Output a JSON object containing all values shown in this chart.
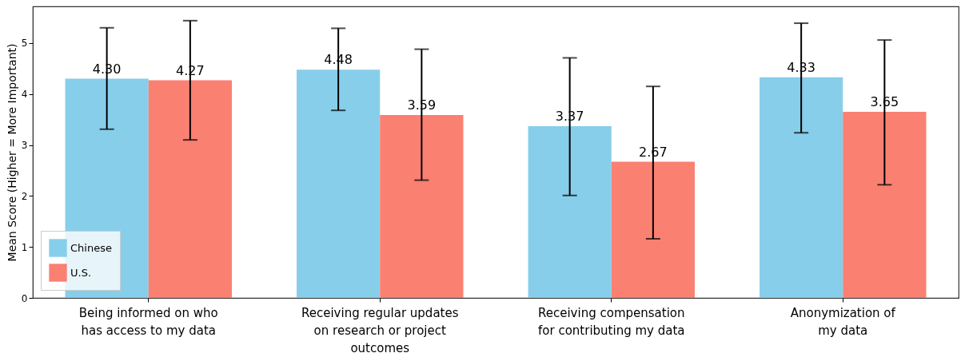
{
  "chart_data": {
    "type": "bar",
    "ylabel": "Mean Score (Higher = More Important)",
    "categories": [
      "Being informed on who\nhas access to my data",
      "Receiving regular updates\non research or project\noutcomes",
      "Receiving   compensation\nfor contributing my data",
      "Anonymization of\nmy data"
    ],
    "series": [
      {
        "name": "Chinese",
        "color": "#87ceeb",
        "values": [
          4.3,
          4.48,
          3.37,
          4.33
        ],
        "value_labels": [
          "4.30",
          "4.48",
          "3.37",
          "4.33"
        ],
        "errors": [
          [
            3.31,
            5.3
          ],
          [
            3.68,
            5.29
          ],
          [
            2.01,
            4.71
          ],
          [
            3.24,
            5.39
          ]
        ]
      },
      {
        "name": "U.S.",
        "color": "#fa8072",
        "values": [
          4.27,
          3.59,
          2.67,
          3.65
        ],
        "value_labels": [
          "4.27",
          "3.59",
          "2.67",
          "3.65"
        ],
        "errors": [
          [
            3.1,
            5.44
          ],
          [
            2.31,
            4.88
          ],
          [
            1.16,
            4.15
          ],
          [
            2.22,
            5.06
          ]
        ]
      }
    ],
    "ylim": [
      0,
      5.72
    ],
    "yticks": [
      0,
      1,
      2,
      3,
      4,
      5
    ],
    "grid": false,
    "legend": "bottom left"
  }
}
